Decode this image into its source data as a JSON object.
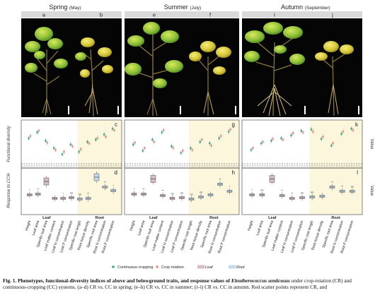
{
  "seasons": [
    {
      "name": "Spring",
      "month": "(May)",
      "photo_labels": [
        "a",
        "b"
      ],
      "dot_label": "c",
      "box_label": "d"
    },
    {
      "name": "Summer",
      "month": "(July)",
      "photo_labels": [
        "e",
        "f"
      ],
      "dot_label": "g",
      "box_label": "h"
    },
    {
      "name": "Autumn",
      "month": "(September)",
      "photo_labels": [
        "i",
        "j"
      ],
      "dot_label": "k",
      "box_label": "l"
    }
  ],
  "axes": {
    "functional_diversity": "Functional diversity",
    "response": "Response to CC%",
    "value": "Value"
  },
  "groups": {
    "leaf": "Leaf",
    "root": "Root"
  },
  "traits": [
    "Height",
    "Leaf area",
    "Specific leaf area",
    "Leaf matter content",
    "Leaf N concentration",
    "Leaf P concentration",
    "Specific root length",
    "Root tissue density",
    "Specific root area",
    "Root N concentration",
    "Root P concentration"
  ],
  "legend": [
    {
      "label": "Continuous cropping",
      "kind": "dot",
      "color": "#3aa58a"
    },
    {
      "label": "Crop rotation",
      "kind": "dot",
      "color": "#e8897a"
    },
    {
      "label": "Leaf",
      "kind": "box",
      "color": "#d8bcc4"
    },
    {
      "label": "Root",
      "kind": "box",
      "color": "#c2dcef"
    }
  ],
  "colors": {
    "cc": "#3aa58a",
    "cr": "#e8897a",
    "leaf_bg": "#fbf6dc",
    "root_bg": "#eaf3fb"
  },
  "caption": {
    "label": "Fig. 1.",
    "text1": "Phenotypes, functional-diversity indices of above and belowground traits, and response values of ",
    "species": "Eleutherococcus senticosus",
    "text2": " under crop-rotation (CR) and continuous-cropping (CC) systems. (a–d) CR vs. CC in spring; (e–h) CR vs. CC in summer; (i–l) CR vs. CC in autumn. Red scatter points represent CR, and"
  },
  "chart_data": [
    {
      "type": "scatter",
      "panel": "c",
      "season": "Spring",
      "series": [
        {
          "name": "Continuous cropping",
          "values": [
            0.62,
            0.78,
            0.55,
            0.35,
            0.18,
            0.45,
            0.25,
            0.52,
            0.58,
            0.72,
            0.88
          ]
        },
        {
          "name": "Crop rotation",
          "values": [
            0.68,
            0.82,
            0.5,
            0.3,
            0.25,
            0.4,
            0.32,
            0.48,
            0.62,
            0.66,
            0.84
          ]
        }
      ]
    },
    {
      "type": "scatter",
      "panel": "g",
      "season": "Summer",
      "series": [
        {
          "name": "Continuous cropping",
          "values": [
            0.45,
            0.28,
            0.58,
            0.78,
            0.4,
            0.22,
            0.35,
            0.52,
            0.48,
            0.62,
            0.8
          ]
        },
        {
          "name": "Crop rotation",
          "values": [
            0.5,
            0.35,
            0.52,
            0.84,
            0.36,
            0.28,
            0.3,
            0.58,
            0.42,
            0.68,
            0.86
          ]
        }
      ]
    },
    {
      "type": "scatter",
      "panel": "k",
      "season": "Autumn",
      "series": [
        {
          "name": "Continuous cropping",
          "values": [
            0.3,
            0.48,
            0.55,
            0.62,
            0.7,
            0.82,
            0.86,
            0.6,
            0.42,
            0.74,
            0.88
          ]
        },
        {
          "name": "Crop rotation",
          "values": [
            0.35,
            0.52,
            0.6,
            0.58,
            0.76,
            0.78,
            0.8,
            0.66,
            0.48,
            0.8,
            0.84
          ]
        }
      ]
    },
    {
      "type": "box",
      "panel": "d",
      "season": "Spring",
      "significance": [
        "*",
        "**",
        "",
        "",
        "*",
        "ns",
        "ns",
        "**",
        "",
        "**",
        "*"
      ],
      "medians": [
        0.4,
        0.42,
        0.78,
        0.3,
        0.3,
        0.32,
        0.28,
        0.3,
        0.9,
        0.62,
        0.52
      ]
    },
    {
      "type": "box",
      "panel": "h",
      "season": "Summer",
      "significance": [
        "*",
        "**",
        "",
        "**",
        "ns",
        "ns",
        "ns",
        "ns",
        "",
        "**",
        "*"
      ],
      "medians": [
        0.42,
        0.42,
        0.85,
        0.38,
        0.3,
        0.32,
        0.28,
        0.34,
        0.4,
        0.7,
        0.5
      ]
    },
    {
      "type": "box",
      "panel": "l",
      "season": "Autumn",
      "significance": [
        "*",
        "ns",
        "",
        "**",
        "**",
        "ns",
        "ns",
        "",
        "**",
        "**",
        "ns"
      ],
      "medians": [
        0.4,
        0.4,
        0.85,
        0.38,
        0.3,
        0.32,
        0.34,
        0.36,
        0.62,
        0.5,
        0.5
      ]
    }
  ]
}
